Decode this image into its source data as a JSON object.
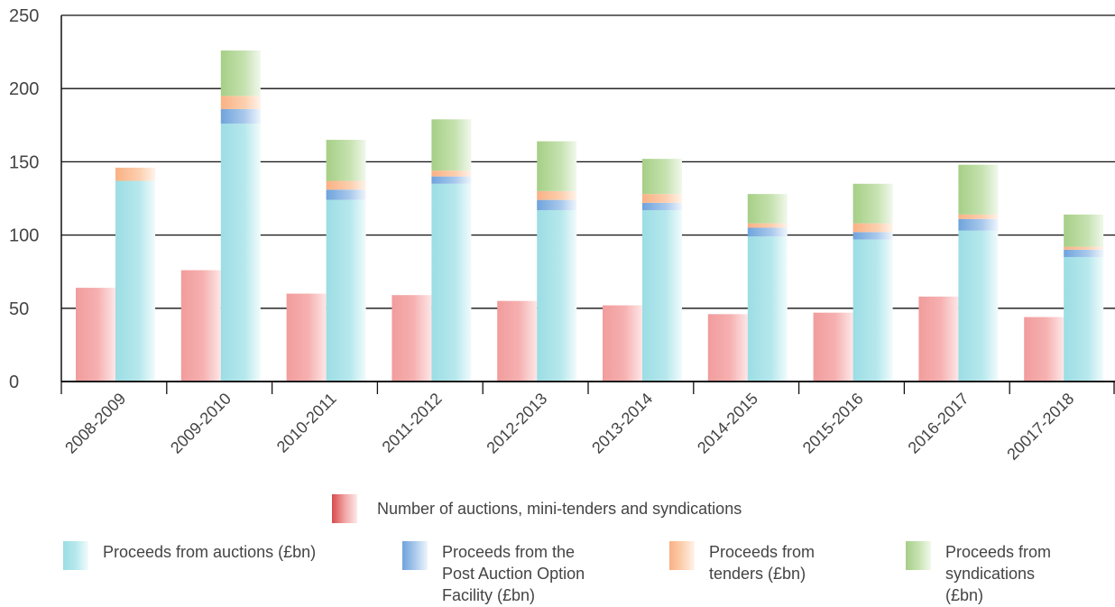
{
  "chart_data": {
    "type": "bar",
    "title": "",
    "xlabel": "",
    "ylabel": "",
    "ylim": [
      0,
      250
    ],
    "yticks": [
      0,
      50,
      100,
      150,
      200,
      250
    ],
    "grid": true,
    "categories": [
      "2008-2009",
      "2009-2010",
      "2010-2011",
      "2011-2012",
      "2012-2013",
      "2013-2014",
      "2014-2015",
      "2015-2016",
      "2016-2017",
      "20017-2018"
    ],
    "series": [
      {
        "name": "Number of auctions, mini-tenders and syndications",
        "values": [
          64,
          76,
          60,
          59,
          55,
          52,
          46,
          47,
          58,
          44
        ],
        "color": "#f4a6a6",
        "group": "count"
      },
      {
        "name": "Proceeds from auctions (£bn)",
        "values": [
          137,
          176,
          124,
          135,
          117,
          117,
          99,
          97,
          103,
          85
        ],
        "color": "#a9e2e8",
        "group": "proceeds"
      },
      {
        "name": "Proceeds from the\nPost Auction Option\nFacility (£bn)",
        "values": [
          0,
          10,
          7,
          5,
          7,
          5,
          6,
          5,
          8,
          5
        ],
        "color": "#8fb8e3",
        "group": "proceeds"
      },
      {
        "name": "Proceeds from\ntenders (£bn)",
        "values": [
          9,
          9,
          6,
          4,
          6,
          6,
          3,
          6,
          3,
          2
        ],
        "color": "#fbc6a1",
        "group": "proceeds"
      },
      {
        "name": "Proceeds from\nsyndications\n(£bn)",
        "values": [
          0,
          31,
          28,
          35,
          34,
          24,
          20,
          27,
          34,
          22
        ],
        "color": "#b6d79b",
        "group": "proceeds"
      }
    ]
  },
  "legend": {
    "count_label": "Number of auctions, mini-tenders and syndications",
    "auctions_label": "Proceeds from auctions (£bn)",
    "paof_label": "Proceeds from the\nPost Auction Option\nFacility (£bn)",
    "tenders_label": "Proceeds from\ntenders (£bn)",
    "syndications_label": "Proceeds from\nsyndications\n(£bn)"
  }
}
